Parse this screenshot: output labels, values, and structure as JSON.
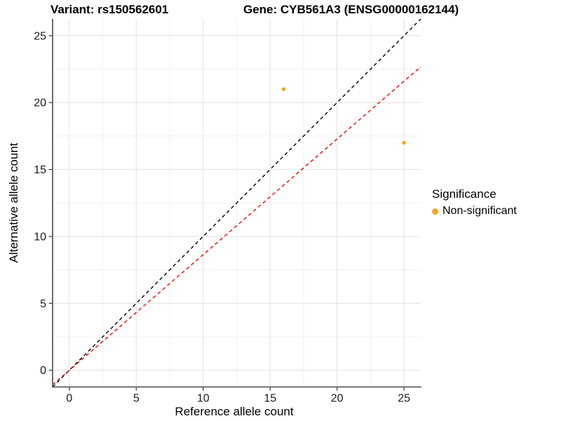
{
  "header": {
    "title_left": "Variant: rs150562601",
    "title_right": "Gene: CYB561A3 (ENSG00000162144)"
  },
  "chart_data": {
    "type": "scatter",
    "title_left": "Variant: rs150562601",
    "title_right": "Gene: CYB561A3 (ENSG00000162144)",
    "xlabel": "Reference allele count",
    "ylabel": "Alternative allele count",
    "xlim": [
      -1.25,
      26.25
    ],
    "ylim": [
      -1.25,
      26.25
    ],
    "x_ticks": [
      0,
      5,
      10,
      15,
      20,
      25
    ],
    "y_ticks": [
      0,
      5,
      10,
      15,
      20,
      25
    ],
    "x_minor_ticks": [
      2.5,
      7.5,
      12.5,
      17.5,
      22.5
    ],
    "y_minor_ticks": [
      2.5,
      7.5,
      12.5,
      17.5,
      22.5
    ],
    "grid": {
      "show": true,
      "major_color": "#E4E4E4",
      "minor_color": "#F1F1F1",
      "background": "#FFFFFF"
    },
    "axis": {
      "line_color": "#474747",
      "tick_color": "#333333",
      "tick_label_color": "#1A1A1A"
    },
    "points": [
      {
        "x": 16,
        "y": 21,
        "series": "Non-significant"
      },
      {
        "x": 25,
        "y": 17,
        "series": "Non-significant"
      }
    ],
    "point_color": "#FAA21C",
    "point_radius": 2.7,
    "reference_lines": [
      {
        "name": "identity-line",
        "slope": 1,
        "intercept": 0,
        "color": "#000000",
        "style": "dashed"
      },
      {
        "name": "fit-line",
        "slope": 0.864,
        "intercept": 0,
        "color": "#FF0000",
        "style": "dashed"
      }
    ],
    "legend": {
      "title": "Significance",
      "position": "right",
      "items": [
        {
          "label": "Non-significant",
          "color": "#FAA21C"
        }
      ]
    }
  }
}
